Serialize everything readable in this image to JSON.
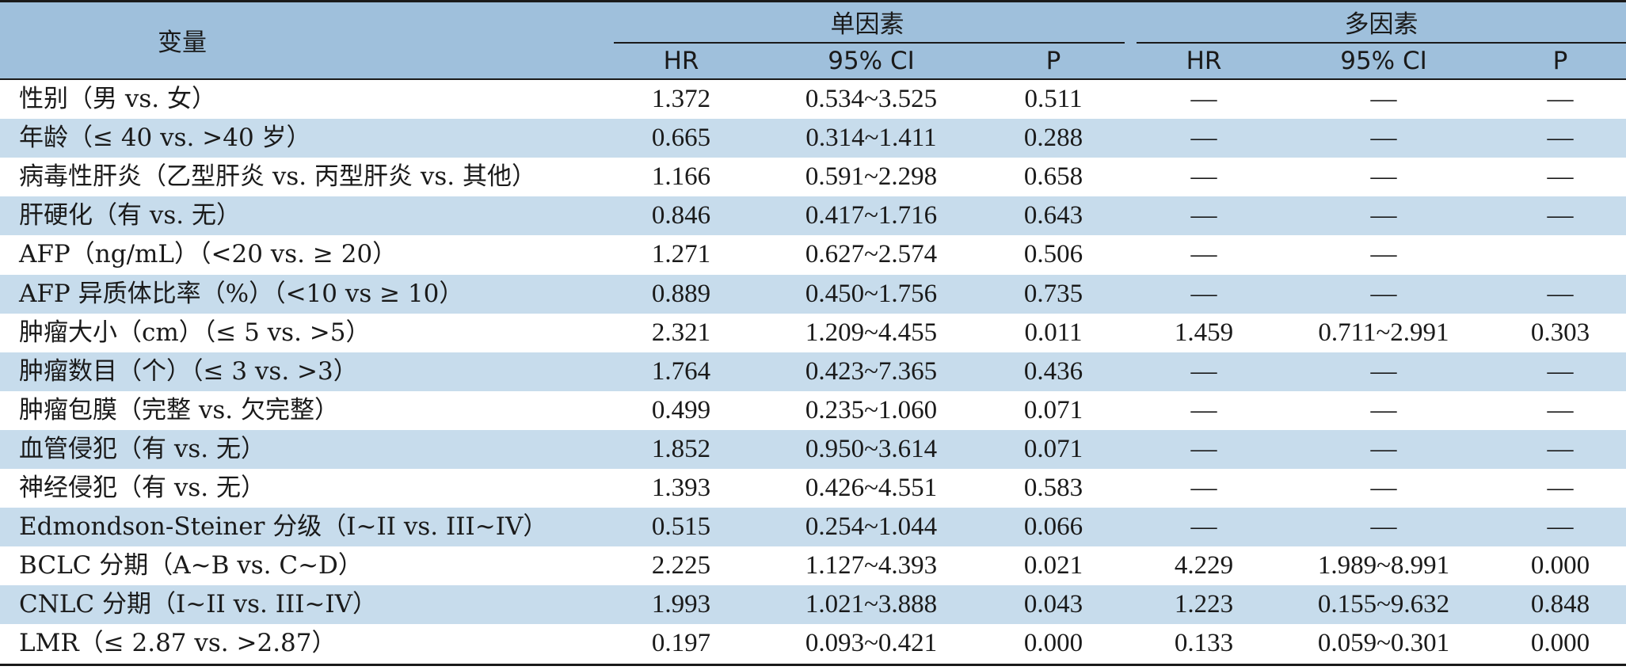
{
  "header": {
    "variable_label": "变量",
    "univariate_label": "单因素",
    "multivariate_label": "多因素",
    "columns": [
      "HR",
      "95% CI",
      "P",
      "HR",
      "95% CI",
      "P"
    ]
  },
  "rows": [
    {
      "variable": "性别（男 vs. 女）",
      "uni_hr": "1.372",
      "uni_ci": "0.534~3.525",
      "uni_p": "0.511",
      "multi_hr": "—",
      "multi_ci": "—",
      "multi_p": "—"
    },
    {
      "variable": "年龄（≤ 40 vs. >40 岁）",
      "uni_hr": "0.665",
      "uni_ci": "0.314~1.411",
      "uni_p": "0.288",
      "multi_hr": "—",
      "multi_ci": "—",
      "multi_p": "—"
    },
    {
      "variable": "病毒性肝炎（乙型肝炎 vs. 丙型肝炎 vs. 其他）",
      "uni_hr": "1.166",
      "uni_ci": "0.591~2.298",
      "uni_p": "0.658",
      "multi_hr": "—",
      "multi_ci": "—",
      "multi_p": "—"
    },
    {
      "variable": "肝硬化（有 vs. 无）",
      "uni_hr": "0.846",
      "uni_ci": "0.417~1.716",
      "uni_p": "0.643",
      "multi_hr": "—",
      "multi_ci": "—",
      "multi_p": "—"
    },
    {
      "variable": "AFP（ng/mL）（<20 vs. ≥ 20）",
      "uni_hr": "1.271",
      "uni_ci": "0.627~2.574",
      "uni_p": "0.506",
      "multi_hr": "—",
      "multi_ci": "—",
      "multi_p": ""
    },
    {
      "variable": "AFP 异质体比率（%）（<10 vs ≥ 10）",
      "uni_hr": "0.889",
      "uni_ci": "0.450~1.756",
      "uni_p": "0.735",
      "multi_hr": "—",
      "multi_ci": "—",
      "multi_p": "—"
    },
    {
      "variable": "肿瘤大小（cm）（≤ 5 vs. >5）",
      "uni_hr": "2.321",
      "uni_ci": "1.209~4.455",
      "uni_p": "0.011",
      "multi_hr": "1.459",
      "multi_ci": "0.711~2.991",
      "multi_p": "0.303"
    },
    {
      "variable": "肿瘤数目（个）（≤ 3 vs. >3）",
      "uni_hr": "1.764",
      "uni_ci": "0.423~7.365",
      "uni_p": "0.436",
      "multi_hr": "—",
      "multi_ci": "—",
      "multi_p": "—"
    },
    {
      "variable": "肿瘤包膜（完整 vs. 欠完整）",
      "uni_hr": "0.499",
      "uni_ci": "0.235~1.060",
      "uni_p": "0.071",
      "multi_hr": "—",
      "multi_ci": "—",
      "multi_p": "—"
    },
    {
      "variable": "血管侵犯（有 vs. 无）",
      "uni_hr": "1.852",
      "uni_ci": "0.950~3.614",
      "uni_p": "0.071",
      "multi_hr": "—",
      "multi_ci": "—",
      "multi_p": "—"
    },
    {
      "variable": "神经侵犯（有 vs. 无）",
      "uni_hr": "1.393",
      "uni_ci": "0.426~4.551",
      "uni_p": "0.583",
      "multi_hr": "—",
      "multi_ci": "—",
      "multi_p": "—"
    },
    {
      "variable": "Edmondson-Steiner 分级（I~II vs. III~IV）",
      "uni_hr": "0.515",
      "uni_ci": "0.254~1.044",
      "uni_p": "0.066",
      "multi_hr": "—",
      "multi_ci": "—",
      "multi_p": "—"
    },
    {
      "variable": "BCLC 分期（A~B vs. C~D）",
      "uni_hr": "2.225",
      "uni_ci": "1.127~4.393",
      "uni_p": "0.021",
      "multi_hr": "4.229",
      "multi_ci": "1.989~8.991",
      "multi_p": "0.000"
    },
    {
      "variable": "CNLC 分期（I~II vs. III~IV）",
      "uni_hr": "1.993",
      "uni_ci": "1.021~3.888",
      "uni_p": "0.043",
      "multi_hr": "1.223",
      "multi_ci": "0.155~9.632",
      "multi_p": "0.848"
    },
    {
      "variable": "LMR（≤ 2.87 vs. >2.87）",
      "uni_hr": "0.197",
      "uni_ci": "0.093~0.421",
      "uni_p": "0.000",
      "multi_hr": "0.133",
      "multi_ci": "0.059~0.301",
      "multi_p": "0.000"
    }
  ]
}
